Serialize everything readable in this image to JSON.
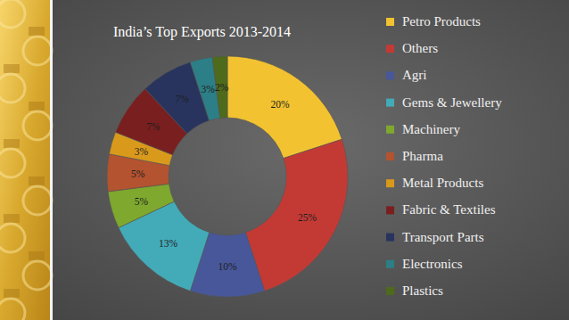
{
  "chart_data": {
    "type": "pie",
    "title": "India’s Top Exports 2013-2014",
    "categories": [
      "Petro Products",
      "Others",
      "Agri",
      "Gems & Jewellery",
      "Machinery",
      "Pharma",
      "Metal Products",
      "Fabric & Textiles",
      "Transport Parts",
      "Electronics",
      "Plastics"
    ],
    "values": [
      20,
      25,
      10,
      13,
      5,
      5,
      3,
      7,
      7,
      3,
      2
    ],
    "value_labels": [
      "20%",
      "25%",
      "10%",
      "13%",
      "5%",
      "5%",
      "3%",
      "7%",
      "7%",
      "3%",
      "2%"
    ],
    "colors": [
      "#f2c230",
      "#c33a35",
      "#47579a",
      "#43abb8",
      "#7ea82e",
      "#b3532f",
      "#d99a1c",
      "#7a1f1f",
      "#28345e",
      "#2c7f86",
      "#4e6a1b"
    ],
    "data_labels": true,
    "legend": "right"
  }
}
